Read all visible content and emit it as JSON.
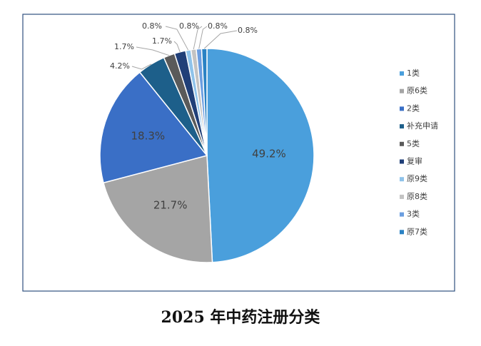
{
  "chart_data": {
    "type": "pie",
    "title": "2025 年中药注册分类",
    "categories": [
      "1类",
      "原6类",
      "2类",
      "补充申请",
      "5类",
      "复审",
      "原9类",
      "原8类",
      "3类",
      "原7类"
    ],
    "values": [
      49.2,
      21.7,
      18.3,
      4.2,
      1.7,
      1.7,
      0.8,
      0.8,
      0.8,
      0.8
    ],
    "value_labels": [
      "49.2%",
      "21.7%",
      "18.3%",
      "4.2%",
      "1.7%",
      "1.7%",
      "0.8%",
      "0.8%",
      "0.8%",
      "0.8%"
    ],
    "colors": [
      "#4a9fdc",
      "#a5a5a5",
      "#3a6fc6",
      "#1d5f8a",
      "#5a5a5a",
      "#203f78",
      "#8fc3ea",
      "#c3c3c3",
      "#6b9ee0",
      "#2a82c4"
    ],
    "legend": "right"
  }
}
